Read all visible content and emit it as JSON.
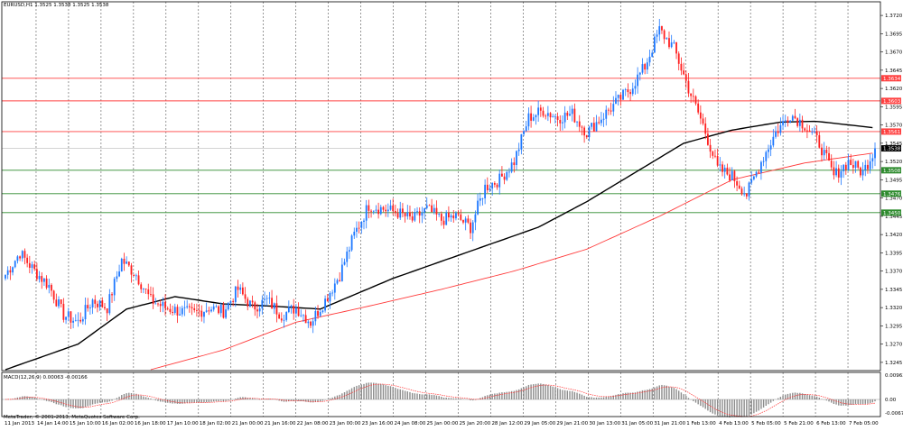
{
  "chart_data": {
    "type": "candlestick",
    "symbol_header": "EURUSD,H1  1.3525 1.3538 1.3525 1.3538",
    "copyright": "MetaTrader, © 2001-2013, MetaQuotes Software Corp.",
    "indicator_header": "MACD(12,26,9) 0.00063 -0.00166",
    "last_price": "1.3538",
    "ylim": [
      1.3235,
      1.373
    ],
    "y_ticks": [
      "1.3720",
      "1.3695",
      "1.3670",
      "1.3645",
      "1.3620",
      "1.3595",
      "1.3570",
      "1.3545",
      "1.3520",
      "1.3495",
      "1.3470",
      "1.3445",
      "1.3420",
      "1.3395",
      "1.3370",
      "1.3345",
      "1.3320",
      "1.3295",
      "1.3270",
      "1.3245"
    ],
    "x_ticks": [
      "11 Jan 2013",
      "14 Jan 14:00",
      "15 Jan 10:00",
      "16 Jan 02:00",
      "16 Jan 18:00",
      "17 Jan 10:00",
      "18 Jan 02:00",
      "21 Jan 00:00",
      "21 Jan 16:00",
      "22 Jan 08:00",
      "23 Jan 00:00",
      "23 Jan 16:00",
      "24 Jan 08:00",
      "25 Jan 00:00",
      "25 Jan 20:00",
      "28 Jan 12:00",
      "29 Jan 05:00",
      "29 Jan 21:00",
      "30 Jan 13:00",
      "31 Jan 05:00",
      "31 Jan 21:00",
      "1 Feb 13:00",
      "4 Feb 13:00",
      "5 Feb 05:00",
      "5 Feb 21:00",
      "6 Feb 13:00",
      "7 Feb 05:00"
    ],
    "horizontal_levels": [
      {
        "label": "1.3634",
        "value": 1.3634,
        "color": "#ff4040"
      },
      {
        "label": "1.3603",
        "value": 1.3603,
        "color": "#ff4040"
      },
      {
        "label": "1.3561",
        "value": 1.3561,
        "color": "#ff4040"
      },
      {
        "label": "1.3508",
        "value": 1.3508,
        "color": "#2e8b2e"
      },
      {
        "label": "1.3476",
        "value": 1.3476,
        "color": "#2e8b2e"
      },
      {
        "label": "1.3450",
        "value": 1.345,
        "color": "#2e8b2e"
      }
    ],
    "macd_ticks": [
      "0.00963",
      "0.00",
      "-0.00677"
    ],
    "series": [
      {
        "name": "price",
        "anchors": [
          [
            0,
            1.3365
          ],
          [
            6,
            1.3395
          ],
          [
            12,
            1.337
          ],
          [
            18,
            1.335
          ],
          [
            24,
            1.331
          ],
          [
            30,
            1.33
          ],
          [
            36,
            1.333
          ],
          [
            42,
            1.332
          ],
          [
            48,
            1.3385
          ],
          [
            54,
            1.3365
          ],
          [
            60,
            1.333
          ],
          [
            66,
            1.332
          ],
          [
            72,
            1.3315
          ],
          [
            78,
            1.3312
          ],
          [
            84,
            1.332
          ],
          [
            90,
            1.3315
          ],
          [
            96,
            1.3345
          ],
          [
            102,
            1.332
          ],
          [
            108,
            1.333
          ],
          [
            114,
            1.331
          ],
          [
            120,
            1.332
          ],
          [
            126,
            1.33
          ],
          [
            132,
            1.333
          ],
          [
            138,
            1.3365
          ],
          [
            144,
            1.342
          ],
          [
            150,
            1.346
          ],
          [
            156,
            1.3455
          ],
          [
            162,
            1.345
          ],
          [
            168,
            1.344
          ],
          [
            174,
            1.3455
          ],
          [
            180,
            1.344
          ],
          [
            186,
            1.3445
          ],
          [
            192,
            1.343
          ],
          [
            198,
            1.3485
          ],
          [
            204,
            1.3495
          ],
          [
            210,
            1.352
          ],
          [
            216,
            1.358
          ],
          [
            222,
            1.359
          ],
          [
            228,
            1.358
          ],
          [
            234,
            1.3585
          ],
          [
            240,
            1.356
          ],
          [
            246,
            1.358
          ],
          [
            252,
            1.36
          ],
          [
            258,
            1.362
          ],
          [
            264,
            1.365
          ],
          [
            270,
            1.37
          ],
          [
            276,
            1.3675
          ],
          [
            282,
            1.362
          ],
          [
            288,
            1.357
          ],
          [
            294,
            1.351
          ],
          [
            300,
            1.35
          ],
          [
            306,
            1.3475
          ],
          [
            312,
            1.352
          ],
          [
            318,
            1.356
          ],
          [
            324,
            1.3585
          ],
          [
            330,
            1.357
          ],
          [
            336,
            1.3545
          ],
          [
            342,
            1.35
          ],
          [
            348,
            1.352
          ],
          [
            354,
            1.3505
          ],
          [
            359,
            1.3538
          ]
        ]
      },
      {
        "name": "ma-black",
        "anchors": [
          [
            0,
            1.3235
          ],
          [
            30,
            1.327
          ],
          [
            50,
            1.3318
          ],
          [
            70,
            1.3335
          ],
          [
            90,
            1.3325
          ],
          [
            110,
            1.3322
          ],
          [
            130,
            1.3318
          ],
          [
            160,
            1.336
          ],
          [
            190,
            1.3395
          ],
          [
            220,
            1.343
          ],
          [
            240,
            1.3465
          ],
          [
            260,
            1.3505
          ],
          [
            280,
            1.3545
          ],
          [
            300,
            1.3563
          ],
          [
            320,
            1.3574
          ],
          [
            335,
            1.3575
          ],
          [
            359,
            1.3566
          ]
        ]
      },
      {
        "name": "ma-red",
        "anchors": [
          [
            60,
            1.3235
          ],
          [
            90,
            1.3262
          ],
          [
            120,
            1.33
          ],
          [
            150,
            1.3322
          ],
          [
            180,
            1.3345
          ],
          [
            210,
            1.337
          ],
          [
            240,
            1.34
          ],
          [
            270,
            1.3445
          ],
          [
            300,
            1.3495
          ],
          [
            330,
            1.3518
          ],
          [
            359,
            1.3532
          ]
        ]
      }
    ]
  }
}
